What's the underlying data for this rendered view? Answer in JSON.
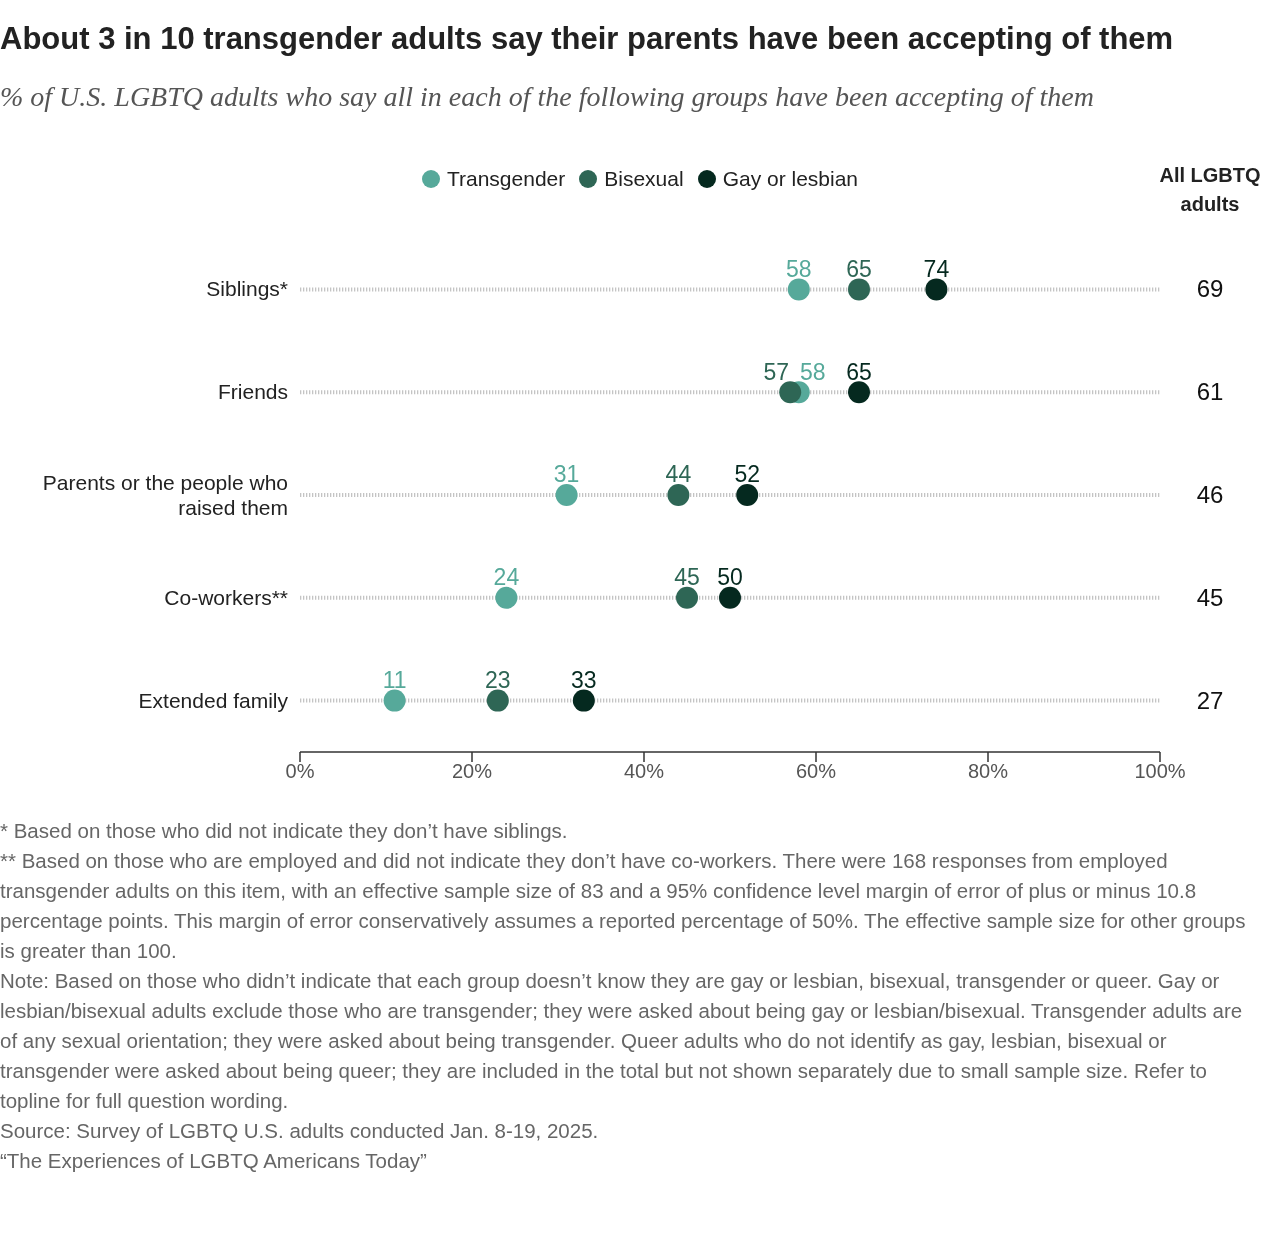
{
  "chart_data": [
    {
      "type": "scatter",
      "orientation": "horizontal",
      "title": "About 3 in 10 transgender adults say their parents have been accepting of them",
      "subtitle": "% of U.S. LGBTQ adults who say all in each of the following groups have been accepting of them",
      "categories": [
        "Siblings*",
        "Friends",
        "Parents or the people who raised them",
        "Co-workers**",
        "Extended family"
      ],
      "series": [
        {
          "name": "Transgender",
          "color": "#56a99a",
          "values": [
            58,
            58,
            31,
            24,
            11
          ]
        },
        {
          "name": "Bisexual",
          "color": "#2e6655",
          "values": [
            65,
            57,
            44,
            45,
            23
          ]
        },
        {
          "name": "Gay or lesbian",
          "color": "#05291f",
          "values": [
            74,
            65,
            52,
            50,
            33
          ]
        }
      ],
      "xlim": [
        0,
        100
      ],
      "xticks": [
        {
          "value": 0,
          "label": "0%"
        },
        {
          "value": 20,
          "label": "20%"
        },
        {
          "value": 40,
          "label": "40%"
        },
        {
          "value": 60,
          "label": "60%"
        },
        {
          "value": 80,
          "label": "80%"
        },
        {
          "value": 100,
          "label": "100%"
        }
      ],
      "grid": "y",
      "legend": "top",
      "marker": "circle",
      "data_labels": true,
      "annotations": [
        "* Based on those who did not indicate they don’t have siblings.",
        "** Based on those who are employed and did not indicate they don’t have co-workers. There were 168 responses from employed transgender adults on this item, with an effective sample size of 83 and a 95% confidence level margin of error of plus or minus 10.8 percentage points. This margin of error conservatively assumes a reported percentage of 50%. The effective sample size for other groups is greater than 100.",
        "Note: Based on those who didn’t indicate that each group doesn’t know they are gay or lesbian, bisexual, transgender or queer. Gay or lesbian/bisexual adults exclude those who are transgender; they were asked about being gay or lesbian/bisexual. Transgender adults are of any sexual orientation; they were asked about being transgender. Queer adults who do not identify as gay, lesbian, bisexual or transgender were asked about being queer; they are included in the total but not shown separately due to small sample size. Refer to topline for full question wording.",
        "Source: Survey of LGBTQ U.S. adults conducted Jan. 8-19, 2025.",
        "“The Experiences of LGBTQ Americans Today”"
      ]
    },
    {
      "type": "other",
      "title": "All LGBTQ adults",
      "values": [
        69,
        61,
        46,
        45,
        27
      ],
      "data_labels": true
    }
  ]
}
